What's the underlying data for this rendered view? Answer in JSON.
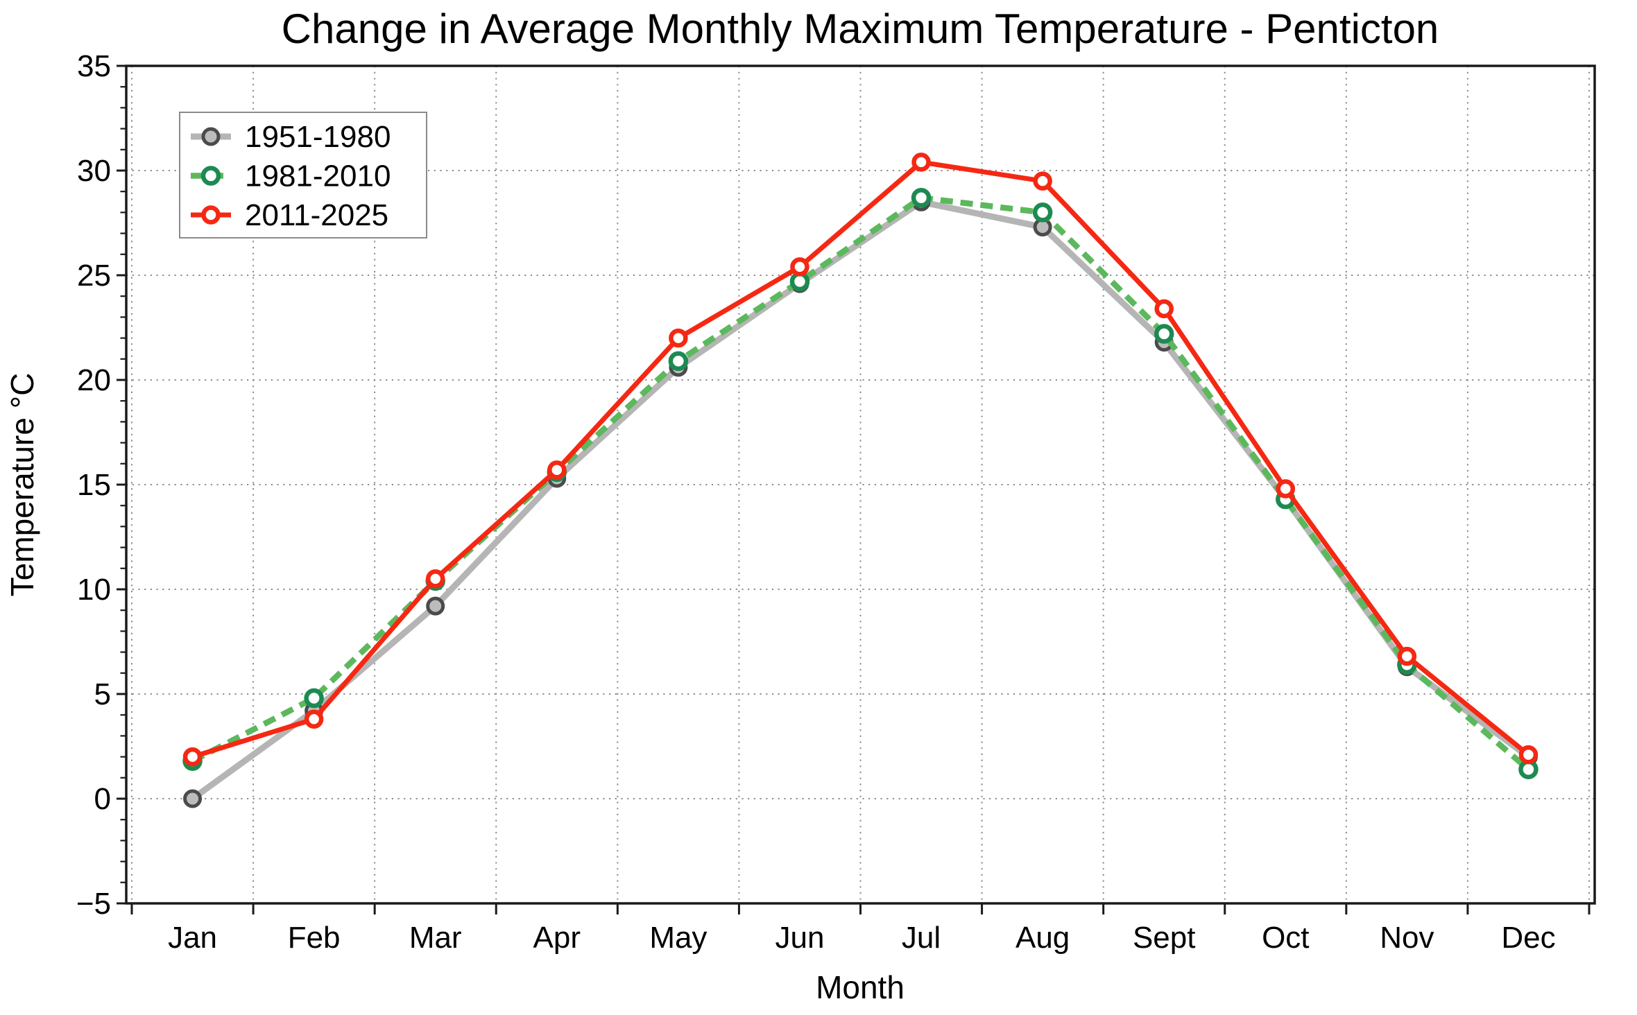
{
  "chart_data": {
    "type": "line",
    "title": "Change in Average Monthly Maximum Temperature - Penticton",
    "xlabel": "Month",
    "ylabel": "Temperature °C",
    "categories": [
      "Jan",
      "Feb",
      "Mar",
      "Apr",
      "May",
      "Jun",
      "Jul",
      "Aug",
      "Sept",
      "Oct",
      "Nov",
      "Dec"
    ],
    "ylim": [
      -5,
      35
    ],
    "yticks": [
      -5,
      0,
      5,
      10,
      15,
      20,
      25,
      30,
      35
    ],
    "ytick_labels": [
      "−5",
      "0",
      "5",
      "10",
      "15",
      "20",
      "25",
      "30",
      "35"
    ],
    "ytick_minor_step": 1,
    "grid": "dotted gridlines at every 5 °C and at month boundaries",
    "grid_color": "#8c8c8c",
    "legend_position": "upper left",
    "series": [
      {
        "name": "1951-1980",
        "line_style": "solid",
        "line_color": "#b5b5b5",
        "line_width": 9,
        "marker": "circle",
        "marker_fill": "#bcbcbc",
        "marker_edge": "#4b4b4b",
        "marker_radius": 11,
        "marker_stroke": 5,
        "values": [
          0.0,
          4.2,
          9.2,
          15.3,
          20.6,
          24.6,
          28.5,
          27.3,
          21.8,
          14.3,
          6.3,
          2.0
        ]
      },
      {
        "name": "1981-2010",
        "line_style": "dashed",
        "line_color": "#5cb85c",
        "line_width": 8.5,
        "marker": "circle",
        "marker_fill": "#ffffff",
        "marker_edge": "#1d8a52",
        "marker_radius": 11,
        "marker_stroke": 6.5,
        "values": [
          1.8,
          4.8,
          10.4,
          15.6,
          20.9,
          24.7,
          28.7,
          28.0,
          22.2,
          14.3,
          6.4,
          1.4
        ]
      },
      {
        "name": "2011-2025",
        "line_style": "solid",
        "line_color": "#f52813",
        "line_width": 7,
        "marker": "circle",
        "marker_fill": "#ffffff",
        "marker_edge": "#f52813",
        "marker_radius": 10.5,
        "marker_stroke": 6.5,
        "values": [
          2.0,
          3.8,
          10.5,
          15.7,
          22.0,
          25.4,
          30.4,
          29.5,
          23.4,
          14.8,
          6.8,
          2.1
        ]
      }
    ]
  }
}
